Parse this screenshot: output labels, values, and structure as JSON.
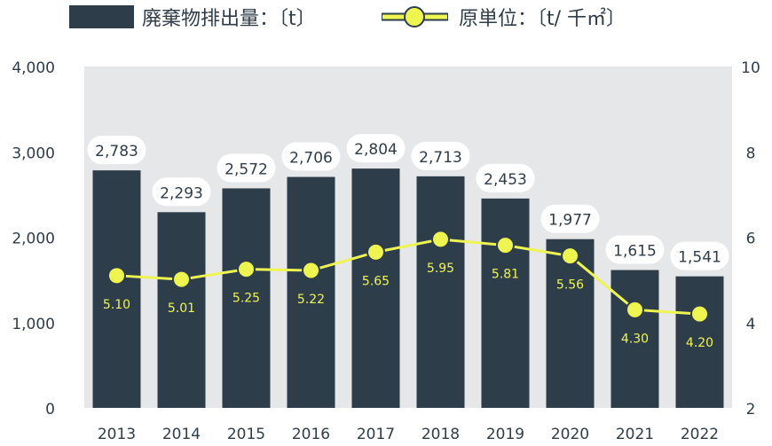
{
  "chart_data": {
    "type": "bar",
    "categories": [
      "2013",
      "2014",
      "2015",
      "2016",
      "2017",
      "2018",
      "2019",
      "2020",
      "2021",
      "2022"
    ],
    "series": [
      {
        "name": "廃棄物排出量：〔t〕",
        "kind": "bar",
        "axis": "left",
        "values": [
          2783,
          2293,
          2572,
          2706,
          2804,
          2713,
          2453,
          1977,
          1615,
          1541
        ],
        "labels": [
          "2,783",
          "2,293",
          "2,572",
          "2,706",
          "2,804",
          "2,713",
          "2,453",
          "1,977",
          "1,615",
          "1,541"
        ]
      },
      {
        "name": "原単位：〔t/ 千㎡〕",
        "kind": "line",
        "axis": "right",
        "values": [
          5.1,
          5.01,
          5.25,
          5.22,
          5.65,
          5.95,
          5.81,
          5.56,
          4.3,
          4.2
        ],
        "labels": [
          "5.10",
          "5.01",
          "5.25",
          "5.22",
          "5.65",
          "5.95",
          "5.81",
          "5.56",
          "4.30",
          "4.20"
        ]
      }
    ],
    "y_left": {
      "min": 0,
      "max": 4000,
      "ticks": [
        0,
        1000,
        2000,
        3000,
        4000
      ],
      "tick_labels": [
        "0",
        "1,000",
        "2,000",
        "3,000",
        "4,000"
      ]
    },
    "y_right": {
      "min": 2,
      "max": 10,
      "ticks": [
        2,
        4,
        6,
        8,
        10
      ],
      "tick_labels": [
        "2",
        "4",
        "6",
        "8",
        "10"
      ]
    },
    "title": "",
    "xlabel": "",
    "ylabel": "",
    "legend_position": "top",
    "colors": {
      "bar": "#2e3d4a",
      "line": "#eef550",
      "marker_stroke": "#2e3d4a",
      "plot_bg": "#e6e7e8",
      "label_bg": "#ffffff"
    }
  }
}
